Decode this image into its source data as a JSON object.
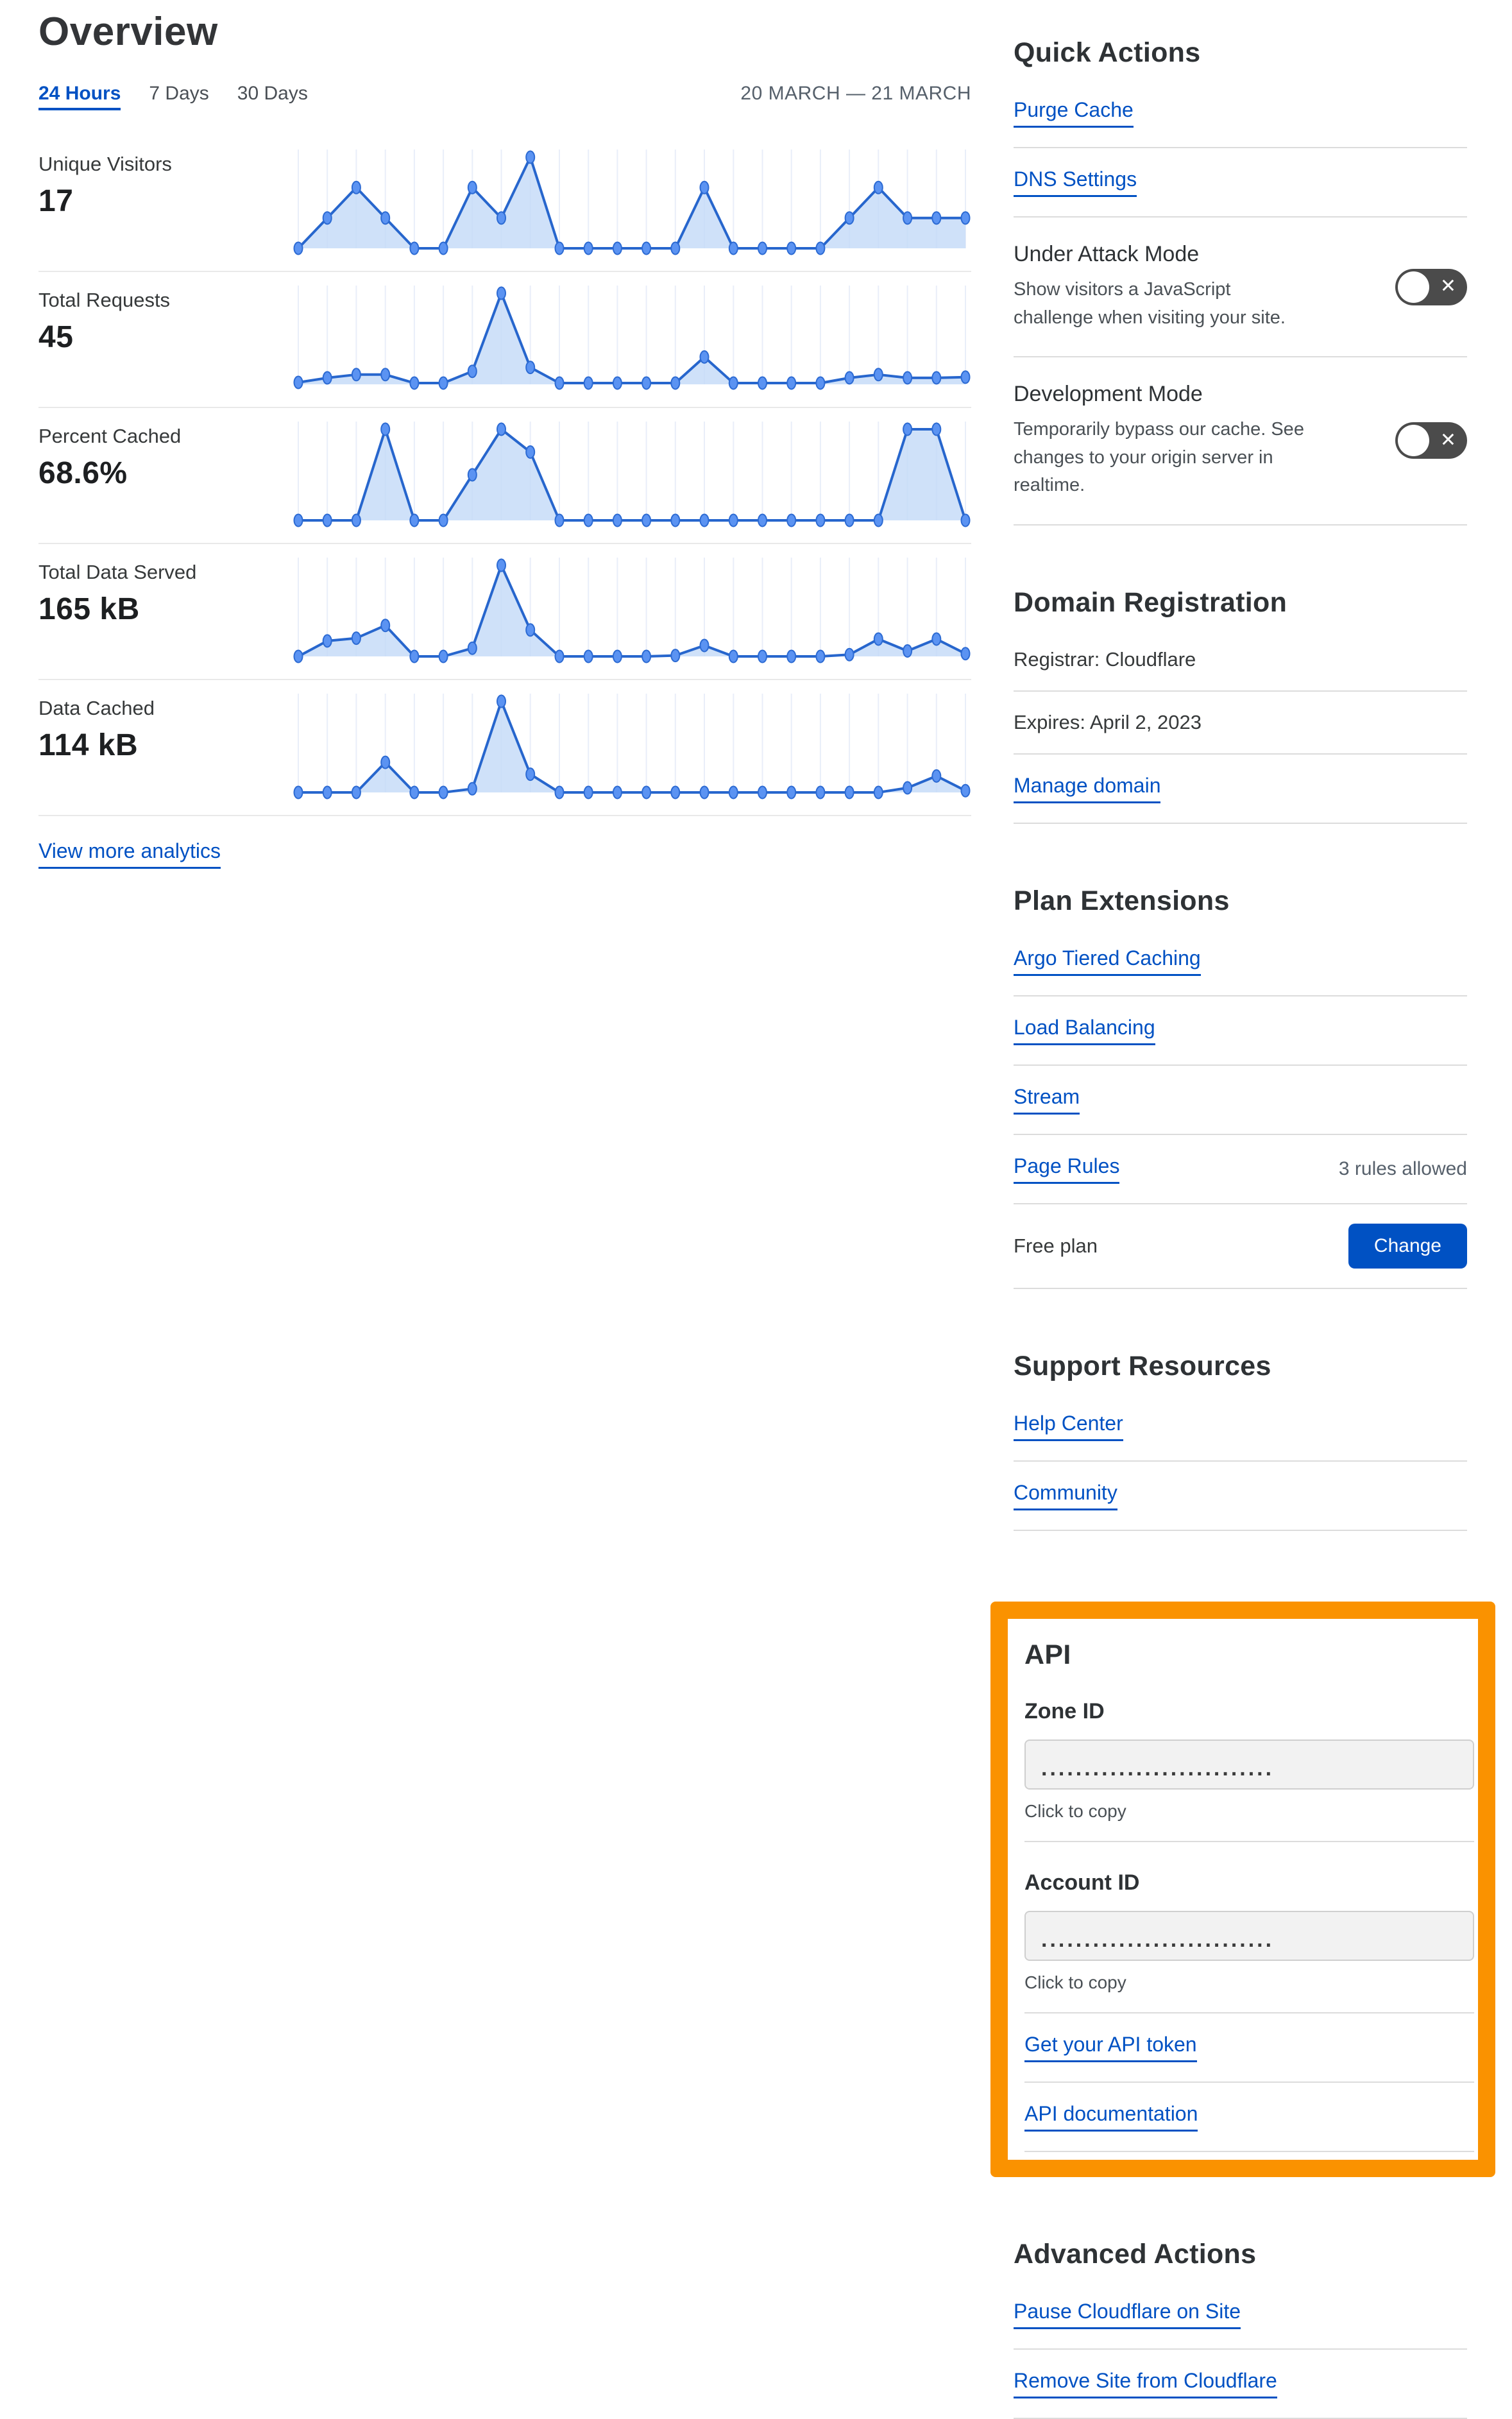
{
  "header": {
    "title": "Overview",
    "tabs": [
      {
        "label": "24 Hours",
        "active": true
      },
      {
        "label": "7 Days",
        "active": false
      },
      {
        "label": "30 Days",
        "active": false
      }
    ],
    "date_range": "20 MARCH — 21 MARCH"
  },
  "view_more_label": "View more analytics",
  "chart_data": {
    "type": "area",
    "x_description": "24 hourly points from 20 March to 21 March",
    "grid": "vertical gridlines at each point",
    "legend_position": "none",
    "charts": [
      {
        "label": "Unique Visitors",
        "value": "17",
        "max": 3,
        "values": [
          0,
          1,
          2,
          1,
          0,
          0,
          2,
          1,
          3,
          0,
          0,
          0,
          0,
          0,
          2,
          0,
          0,
          0,
          0,
          1,
          2,
          1,
          1,
          1
        ]
      },
      {
        "label": "Total Requests",
        "value": "45",
        "max": 14,
        "values": [
          0.3,
          1,
          1.5,
          1.5,
          0.2,
          0.2,
          2,
          14,
          2.6,
          0.2,
          0.2,
          0.2,
          0.2,
          0.2,
          4.2,
          0.2,
          0.2,
          0.2,
          0.2,
          1,
          1.5,
          1,
          1,
          1.1
        ]
      },
      {
        "label": "Percent Cached",
        "value": "68.6%",
        "max": 100,
        "values": [
          0,
          0,
          0,
          100,
          0,
          0,
          50,
          100,
          75,
          0,
          0,
          0,
          0,
          0,
          0,
          0,
          0,
          0,
          0,
          0,
          0,
          100,
          100,
          0
        ]
      },
      {
        "label": "Total Data Served",
        "value": "165 kB",
        "max": 10,
        "values": [
          0,
          1.7,
          2,
          3.4,
          0,
          0,
          0.9,
          10,
          2.9,
          0,
          0,
          0,
          0,
          0.1,
          1.2,
          0,
          0,
          0,
          0,
          0.2,
          1.9,
          0.6,
          1.9,
          0.3
        ]
      },
      {
        "label": "Data Cached",
        "value": "114 kB",
        "max": 10,
        "values": [
          0,
          0,
          0,
          3.3,
          0,
          0,
          0.4,
          10,
          2,
          0,
          0,
          0,
          0,
          0,
          0,
          0,
          0,
          0,
          0,
          0,
          0,
          0.5,
          1.8,
          0.2
        ]
      }
    ]
  },
  "quick_actions": {
    "heading": "Quick Actions",
    "links": [
      "Purge Cache",
      "DNS Settings"
    ],
    "toggles": [
      {
        "title": "Under Attack Mode",
        "description": "Show visitors a JavaScript challenge when visiting your site.",
        "state": "off"
      },
      {
        "title": "Development Mode",
        "description": "Temporarily bypass our cache. See changes to your origin server in realtime.",
        "state": "off"
      }
    ]
  },
  "domain_registration": {
    "heading": "Domain Registration",
    "registrar": "Registrar: Cloudflare",
    "expires": "Expires: April 2, 2023",
    "manage_label": "Manage domain"
  },
  "plan_extensions": {
    "heading": "Plan Extensions",
    "links": [
      "Argo Tiered Caching",
      "Load Balancing",
      "Stream"
    ],
    "page_rules": {
      "label": "Page Rules",
      "note": "3 rules allowed"
    },
    "plan": {
      "label": "Free plan",
      "button_label": "Change"
    }
  },
  "support": {
    "heading": "Support Resources",
    "links": [
      "Help Center",
      "Community"
    ]
  },
  "api": {
    "heading": "API",
    "zone_id_label": "Zone ID",
    "account_id_label": "Account ID",
    "masked_value": "...........................",
    "click_to_copy": "Click to copy",
    "token_link": "Get your API token",
    "docs_link": "API documentation"
  },
  "advanced": {
    "heading": "Advanced Actions",
    "links": [
      "Pause Cloudflare on Site",
      "Remove Site from Cloudflare"
    ]
  },
  "colors": {
    "link_blue": "#0051c3",
    "button_blue": "#0051c3",
    "highlight_orange": "#fa9200",
    "toggle_off_gray": "#4b4b4b",
    "chart_line": "#2766cd",
    "chart_fill": "#c3d9f8",
    "chart_dot": "#5b93f2"
  }
}
